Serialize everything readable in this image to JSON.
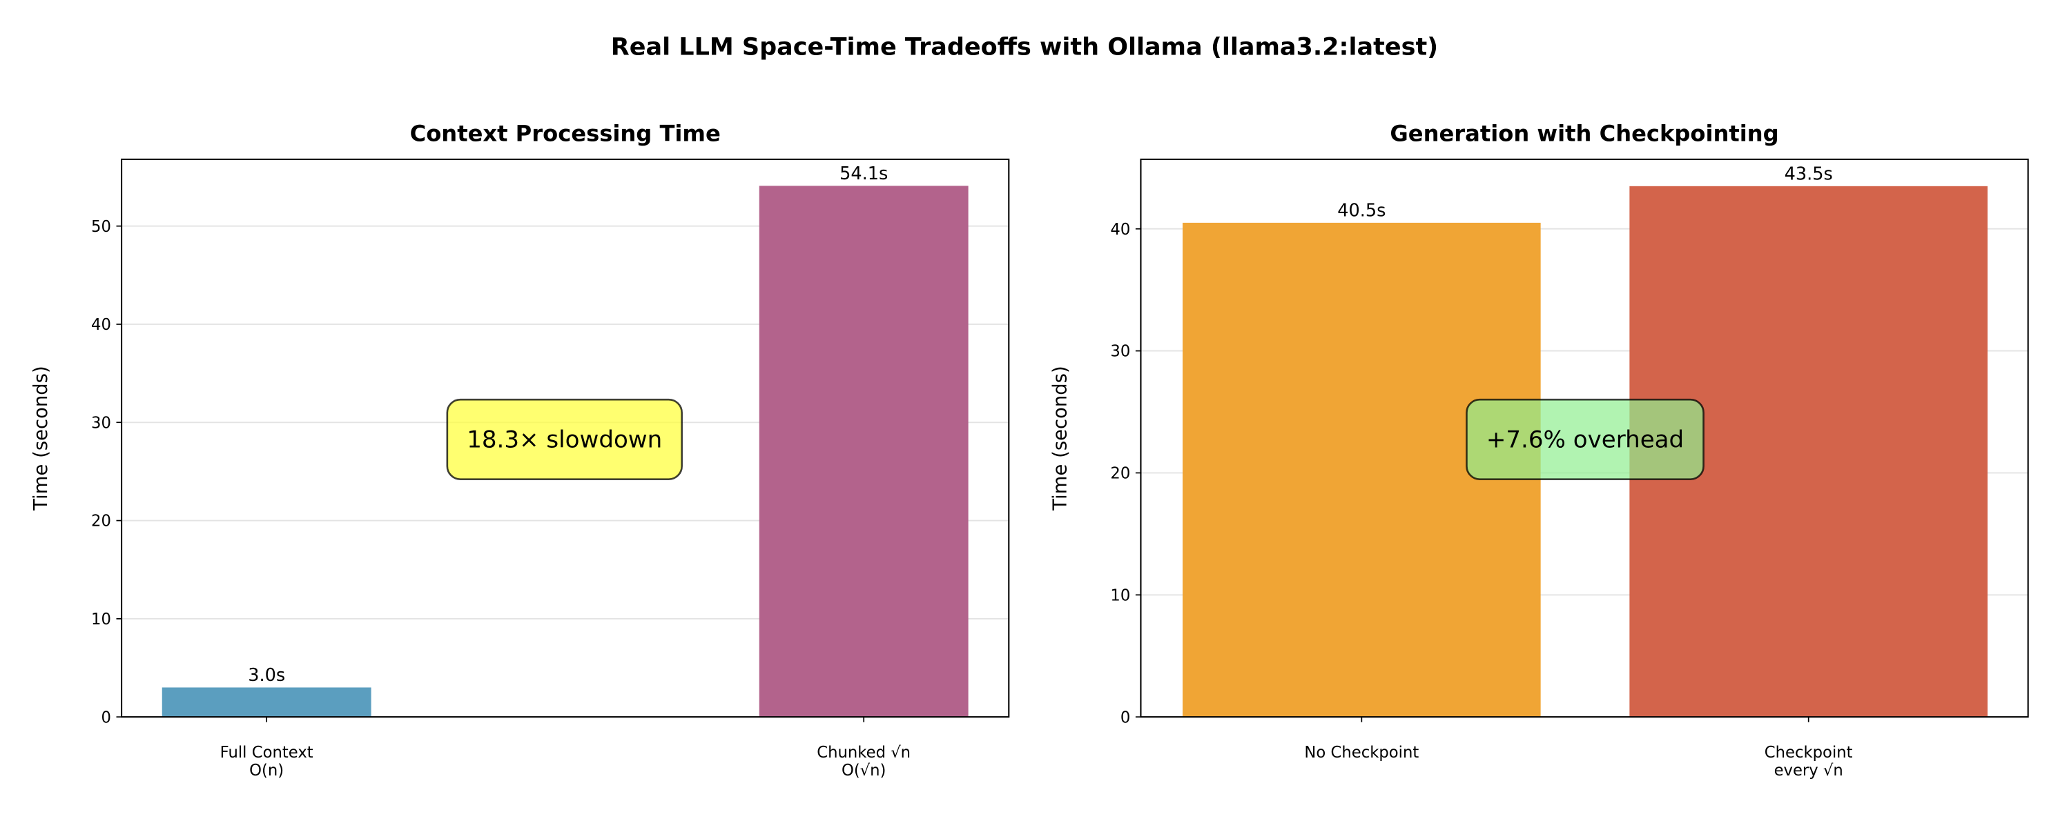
{
  "title": "Real LLM Space-Time Tradeoffs with Ollama (llama3.2:latest)",
  "chart_data": [
    {
      "type": "bar",
      "title": "Context Processing Time",
      "y_label": "Time (seconds)",
      "categories": [
        "Full Context\nO(n)",
        "Chunked √n\nO(√n)"
      ],
      "values": [
        3.0,
        54.1
      ],
      "value_labels": [
        "3.0s",
        "54.1s"
      ],
      "colors": [
        "#5b9ebf",
        "#b3638c"
      ],
      "ylim": [
        0,
        56.8
      ],
      "yticks": [
        0,
        10,
        20,
        30,
        40,
        50
      ],
      "grid": true,
      "annotation": "18.3× slowdown",
      "annotation_color": "#ffff33"
    },
    {
      "type": "bar",
      "title": "Generation with Checkpointing",
      "y_label": "Time (seconds)",
      "categories": [
        "No Checkpoint",
        "Checkpoint\nevery √n"
      ],
      "values": [
        40.5,
        43.5
      ],
      "value_labels": [
        "40.5s",
        "43.5s"
      ],
      "colors": [
        "#f0a535",
        "#d3644b"
      ],
      "ylim": [
        0,
        45.7
      ],
      "yticks": [
        0,
        10,
        20,
        30,
        40
      ],
      "grid": true,
      "annotation": "+7.6% overhead",
      "annotation_color": "#90ee90"
    }
  ]
}
